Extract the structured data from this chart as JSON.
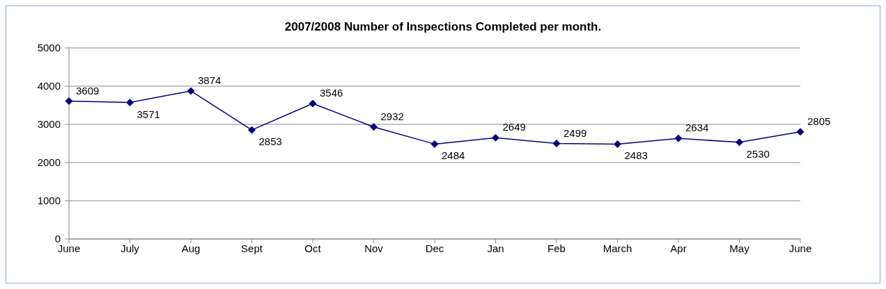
{
  "chart_data": {
    "type": "line",
    "title": "2007/2008 Number of Inspections Completed per month.",
    "categories": [
      "June",
      "July",
      "Aug",
      "Sept",
      "Oct",
      "Nov",
      "Dec",
      "Jan",
      "Feb",
      "March",
      "Apr",
      "May",
      "June"
    ],
    "series": [
      {
        "color": "#000080",
        "values": [
          3609,
          3571,
          3874,
          2853,
          3546,
          2932,
          2484,
          2649,
          2499,
          2483,
          2634,
          2530,
          2805
        ]
      }
    ],
    "ylim": [
      0,
      5000
    ],
    "yticks": [
      0,
      1000,
      2000,
      3000,
      4000,
      5000
    ],
    "grid": "y",
    "marker": "diamond",
    "line_style": "solid",
    "data_labels": true
  }
}
